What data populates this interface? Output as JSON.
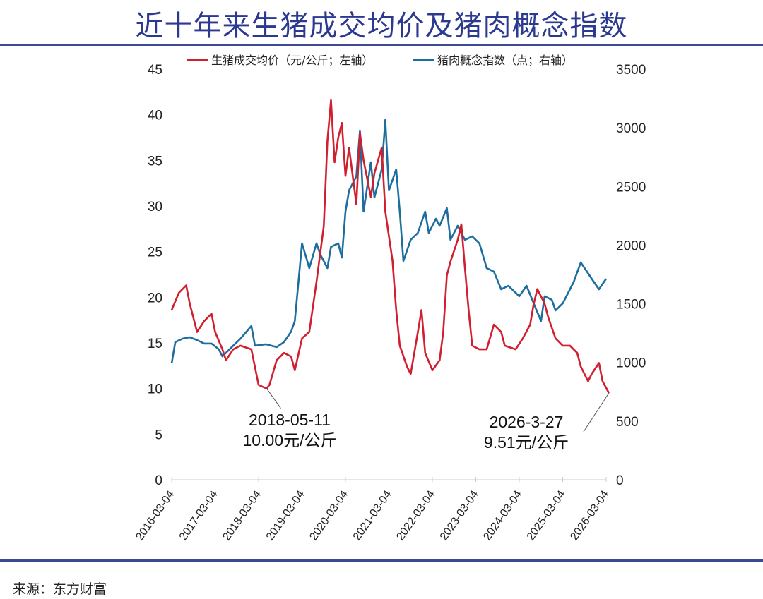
{
  "title": "近十年来生猪成交均价及猪肉概念指数",
  "source": "来源：东方财富",
  "colors": {
    "price": "#d01f2e",
    "index": "#1d6e9e",
    "title": "#2b3990"
  },
  "chart_data": {
    "type": "line",
    "title": "",
    "x_ticks": [
      "2016-03-04",
      "2017-03-04",
      "2018-03-04",
      "2019-03-04",
      "2020-03-04",
      "2021-03-04",
      "2022-03-04",
      "2023-03-04",
      "2024-03-04",
      "2025-03-04",
      "2026-03-04"
    ],
    "y_left": {
      "range": [
        0,
        45
      ],
      "ticks": [
        "0",
        "5",
        "10",
        "15",
        "20",
        "25",
        "30",
        "35",
        "40",
        "45"
      ]
    },
    "y_right": {
      "range": [
        0,
        3500
      ],
      "ticks": [
        "0",
        "500",
        "1000",
        "1500",
        "2000",
        "2500",
        "3000",
        "3500"
      ]
    },
    "legend_position": "top",
    "series": [
      {
        "name": "生猪成交均价（元/公斤；左轴）",
        "axis": "left",
        "color": "#d01f2e",
        "points": [
          [
            "2016-03",
            18.6
          ],
          [
            "2016-05",
            20.5
          ],
          [
            "2016-07",
            21.3
          ],
          [
            "2016-08",
            19.3
          ],
          [
            "2016-10",
            16.2
          ],
          [
            "2016-12",
            17.4
          ],
          [
            "2017-02",
            18.2
          ],
          [
            "2017-03",
            16.2
          ],
          [
            "2017-05",
            14.3
          ],
          [
            "2017-06",
            13.1
          ],
          [
            "2017-08",
            14.3
          ],
          [
            "2017-10",
            14.7
          ],
          [
            "2018-01",
            14.3
          ],
          [
            "2018-03",
            10.4
          ],
          [
            "2018-05-11",
            10.0
          ],
          [
            "2018-06",
            10.4
          ],
          [
            "2018-08",
            13.1
          ],
          [
            "2018-10",
            13.9
          ],
          [
            "2018-12",
            13.5
          ],
          [
            "2019-01",
            12.0
          ],
          [
            "2019-03",
            15.5
          ],
          [
            "2019-05",
            16.2
          ],
          [
            "2019-07",
            21.7
          ],
          [
            "2019-09",
            27.8
          ],
          [
            "2019-10",
            37.1
          ],
          [
            "2019-11",
            41.6
          ],
          [
            "2019-12",
            34.8
          ],
          [
            "2020-01",
            37.5
          ],
          [
            "2020-02",
            39.1
          ],
          [
            "2020-03",
            33.3
          ],
          [
            "2020-04",
            36.4
          ],
          [
            "2020-06",
            30.2
          ],
          [
            "2020-07",
            38.0
          ],
          [
            "2020-08",
            35.0
          ],
          [
            "2020-10",
            31.0
          ],
          [
            "2020-11",
            33.6
          ],
          [
            "2021-01",
            36.4
          ],
          [
            "2021-02",
            29.4
          ],
          [
            "2021-04",
            24.0
          ],
          [
            "2021-05",
            18.6
          ],
          [
            "2021-06",
            14.7
          ],
          [
            "2021-08",
            12.4
          ],
          [
            "2021-09",
            11.6
          ],
          [
            "2021-11",
            16.2
          ],
          [
            "2021-12",
            18.6
          ],
          [
            "2022-01",
            13.9
          ],
          [
            "2022-03",
            12.0
          ],
          [
            "2022-05",
            13.1
          ],
          [
            "2022-06",
            16.2
          ],
          [
            "2022-07",
            22.4
          ],
          [
            "2022-08",
            23.9
          ],
          [
            "2022-10",
            26.3
          ],
          [
            "2022-11",
            28.0
          ],
          [
            "2022-12",
            23.2
          ],
          [
            "2023-01",
            18.6
          ],
          [
            "2023-02",
            14.7
          ],
          [
            "2023-04",
            14.3
          ],
          [
            "2023-06",
            14.3
          ],
          [
            "2023-08",
            17.0
          ],
          [
            "2023-10",
            16.2
          ],
          [
            "2023-11",
            14.7
          ],
          [
            "2024-02",
            14.3
          ],
          [
            "2024-04",
            15.5
          ],
          [
            "2024-06",
            17.0
          ],
          [
            "2024-07",
            19.3
          ],
          [
            "2024-08",
            20.9
          ],
          [
            "2024-10",
            19.3
          ],
          [
            "2024-11",
            17.8
          ],
          [
            "2025-01",
            15.5
          ],
          [
            "2025-03",
            14.7
          ],
          [
            "2025-05",
            14.7
          ],
          [
            "2025-07",
            13.9
          ],
          [
            "2025-08",
            12.4
          ],
          [
            "2025-10",
            10.8
          ],
          [
            "2025-11",
            11.6
          ],
          [
            "2026-01",
            12.8
          ],
          [
            "2026-02",
            10.8
          ],
          [
            "2026-03-27",
            9.51
          ]
        ]
      },
      {
        "name": "猪肉概念指数（点；右轴）",
        "axis": "right",
        "color": "#1d6e9e",
        "points": [
          [
            "2016-03",
            992
          ],
          [
            "2016-04",
            1173
          ],
          [
            "2016-06",
            1203
          ],
          [
            "2016-08",
            1215
          ],
          [
            "2016-10",
            1191
          ],
          [
            "2016-12",
            1161
          ],
          [
            "2017-02",
            1161
          ],
          [
            "2017-04",
            1113
          ],
          [
            "2017-05",
            1052
          ],
          [
            "2017-08",
            1143
          ],
          [
            "2017-10",
            1203
          ],
          [
            "2018-01",
            1311
          ],
          [
            "2018-02",
            1143
          ],
          [
            "2018-05",
            1155
          ],
          [
            "2018-08",
            1131
          ],
          [
            "2018-10",
            1173
          ],
          [
            "2018-12",
            1263
          ],
          [
            "2019-01",
            1353
          ],
          [
            "2019-02",
            1684
          ],
          [
            "2019-03",
            2015
          ],
          [
            "2019-05",
            1804
          ],
          [
            "2019-07",
            2015
          ],
          [
            "2019-08",
            1924
          ],
          [
            "2019-10",
            1804
          ],
          [
            "2019-11",
            1985
          ],
          [
            "2020-01",
            2015
          ],
          [
            "2020-02",
            1894
          ],
          [
            "2020-03",
            2285
          ],
          [
            "2020-04",
            2466
          ],
          [
            "2020-06",
            2586
          ],
          [
            "2020-07",
            2977
          ],
          [
            "2020-08",
            2285
          ],
          [
            "2020-10",
            2706
          ],
          [
            "2020-11",
            2406
          ],
          [
            "2021-01",
            2646
          ],
          [
            "2021-02",
            3067
          ],
          [
            "2021-03",
            2466
          ],
          [
            "2021-05",
            2646
          ],
          [
            "2021-06",
            2285
          ],
          [
            "2021-07",
            1864
          ],
          [
            "2021-09",
            2045
          ],
          [
            "2021-11",
            2105
          ],
          [
            "2022-01",
            2285
          ],
          [
            "2022-02",
            2105
          ],
          [
            "2022-04",
            2225
          ],
          [
            "2022-05",
            2165
          ],
          [
            "2022-07",
            2315
          ],
          [
            "2022-08",
            2045
          ],
          [
            "2022-10",
            2165
          ],
          [
            "2022-12",
            2045
          ],
          [
            "2023-02",
            2075
          ],
          [
            "2023-04",
            2015
          ],
          [
            "2023-06",
            1804
          ],
          [
            "2023-08",
            1774
          ],
          [
            "2023-10",
            1624
          ],
          [
            "2023-12",
            1654
          ],
          [
            "2024-03",
            1564
          ],
          [
            "2024-05",
            1654
          ],
          [
            "2024-07",
            1503
          ],
          [
            "2024-09",
            1353
          ],
          [
            "2024-10",
            1564
          ],
          [
            "2024-12",
            1534
          ],
          [
            "2025-01",
            1443
          ],
          [
            "2025-03",
            1503
          ],
          [
            "2025-06",
            1684
          ],
          [
            "2025-08",
            1852
          ],
          [
            "2025-11",
            1714
          ],
          [
            "2026-01",
            1624
          ],
          [
            "2026-03",
            1714
          ]
        ]
      }
    ],
    "annotations": [
      {
        "date": "2018-05-11",
        "value": 10.0,
        "line1": "2018-05-11",
        "line2": "10.00元/公斤"
      },
      {
        "date": "2026-03-27",
        "value": 9.51,
        "line1": "2026-3-27",
        "line2": "9.51元/公斤"
      }
    ]
  }
}
